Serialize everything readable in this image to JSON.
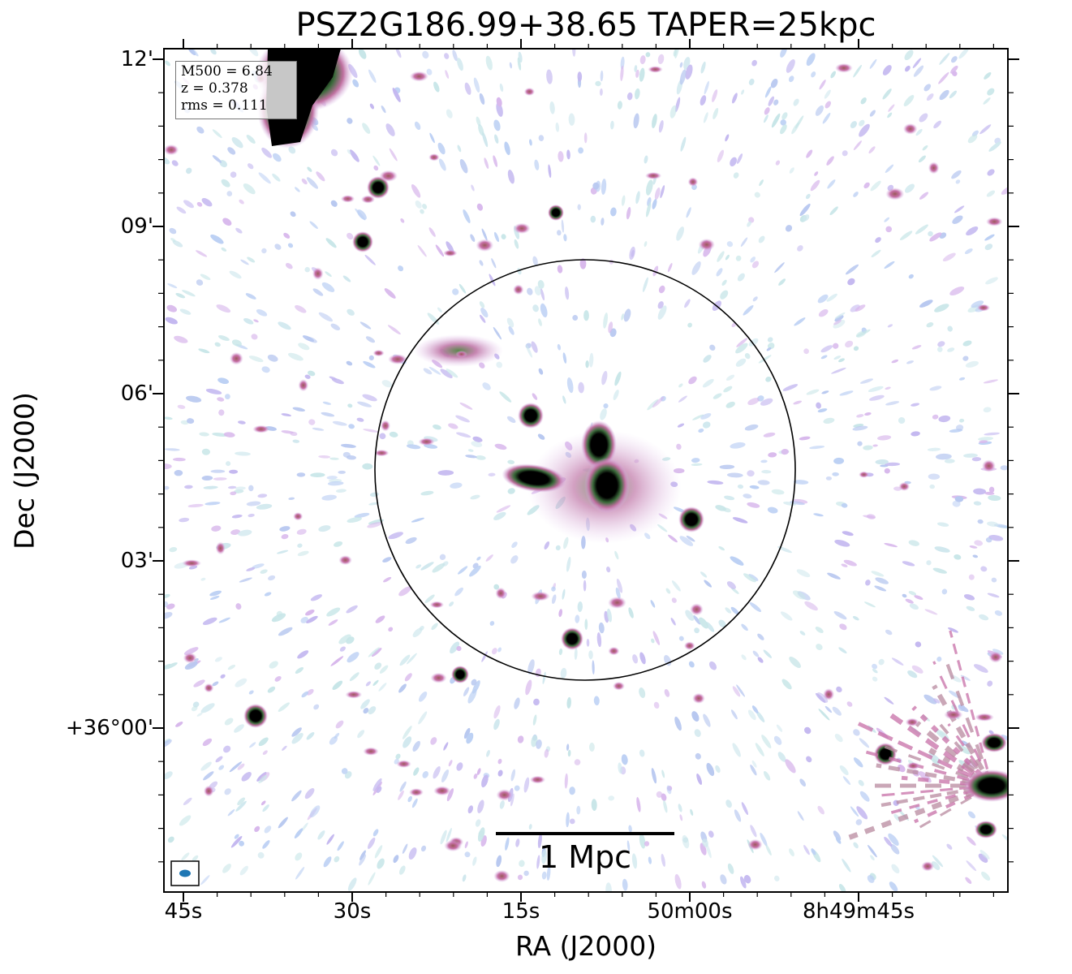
{
  "plot": {
    "title": "PSZ2G186.99+38.65 TAPER=25kpc",
    "xlabel": "RA (J2000)",
    "ylabel": "Dec (J2000)",
    "xticks": [
      "45s",
      "30s",
      "15s",
      "50m00s",
      "8h49m45s"
    ],
    "yticks": [
      "12'",
      "09'",
      "06'",
      "03'",
      "+36°00'"
    ],
    "colormap": "cubehelix-like (white → light blue → violet → pink → green → black)"
  },
  "infobox": {
    "line1": "M500 = 6.84",
    "line2": "z = 0.378",
    "line3": "rms = 0.111"
  },
  "scalebar": {
    "label": "1 Mpc"
  },
  "colors": {
    "frame": "#000000",
    "beam": "#1f77b4",
    "noise_blue": "#b8c8f0",
    "noise_teal": "#c8e6e8",
    "violet": "#c8a8e8",
    "pink": "#c870a8",
    "green": "#3a7a3a",
    "core": "#000000"
  }
}
